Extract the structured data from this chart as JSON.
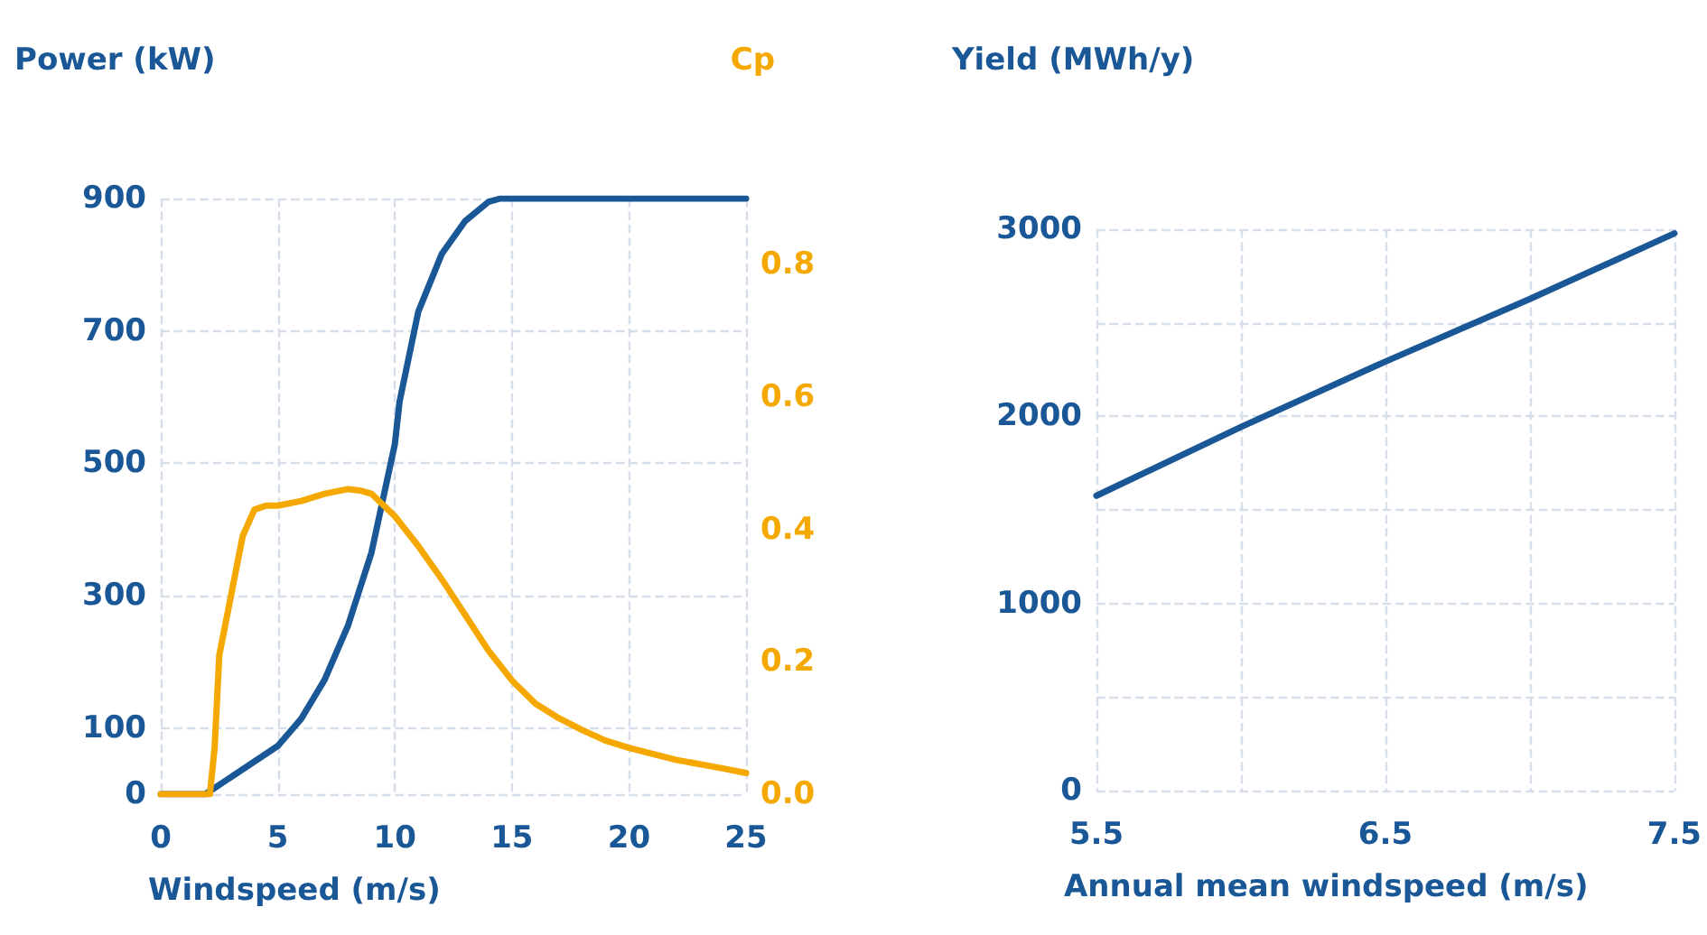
{
  "chart_data": [
    {
      "type": "line",
      "xlabel": "Windspeed (m/s)",
      "ylabel": "Power (kW)",
      "y2label": "Cp",
      "xlim": [
        0,
        25
      ],
      "xticks": [
        0,
        5,
        10,
        15,
        20,
        25
      ],
      "ylim": [
        0,
        900
      ],
      "yticks": [
        0,
        100,
        300,
        500,
        700,
        900
      ],
      "y2lim": [
        0,
        0.9
      ],
      "y2ticks": [
        {
          "value": 0,
          "label": "0.0"
        },
        {
          "value": 0.2,
          "label": "0.2"
        },
        {
          "value": 0.4,
          "label": "0.4"
        },
        {
          "value": 0.6,
          "label": "0.6"
        },
        {
          "value": 0.8,
          "label": "0.8"
        }
      ],
      "grid": true,
      "series": [
        {
          "color": "#1a5796",
          "x": [
            0,
            1.9,
            5,
            6,
            7,
            8,
            9,
            10,
            10.2,
            11,
            12,
            13,
            14,
            14.5,
            25
          ],
          "values": [
            0,
            0,
            73,
            114,
            173,
            255,
            365,
            529,
            593,
            729,
            816,
            866,
            895,
            900,
            900
          ]
        },
        {
          "color": "#f5a800",
          "axis": "y2",
          "x": [
            0,
            2.1,
            2.3,
            2.5,
            3,
            3.5,
            4,
            4.5,
            5,
            6,
            7,
            8,
            8.5,
            9,
            10,
            11,
            12,
            13,
            14,
            15,
            16,
            17,
            18,
            19,
            20,
            22,
            24,
            25
          ],
          "values": [
            0,
            0,
            0.07,
            0.21,
            0.3,
            0.39,
            0.43,
            0.436,
            0.436,
            0.443,
            0.454,
            0.461,
            0.459,
            0.454,
            0.42,
            0.375,
            0.325,
            0.271,
            0.217,
            0.172,
            0.137,
            0.115,
            0.097,
            0.081,
            0.07,
            0.052,
            0.039,
            0.032
          ]
        }
      ]
    },
    {
      "type": "line",
      "xlabel": "Annual mean windspeed (m/s)",
      "ylabel": "Yield (MWh/y)",
      "xlim": [
        5.5,
        7.5
      ],
      "xticks": [
        5.5,
        {
          "value": 6,
          "label": null
        },
        6.5,
        {
          "value": 7,
          "label": null
        },
        7.5
      ],
      "ylim": [
        0,
        3000
      ],
      "yticks": [
        0,
        {
          "value": 500,
          "label": null
        },
        1000,
        {
          "value": 1500,
          "label": null
        },
        2000,
        {
          "value": 2500,
          "label": null
        },
        3000
      ],
      "grid": true,
      "series": [
        {
          "color": "#1a5796",
          "x": [
            5.5,
            6,
            6.5,
            7,
            7.5
          ],
          "values": [
            1576,
            1943,
            2293,
            2627,
            2978
          ]
        }
      ]
    }
  ]
}
